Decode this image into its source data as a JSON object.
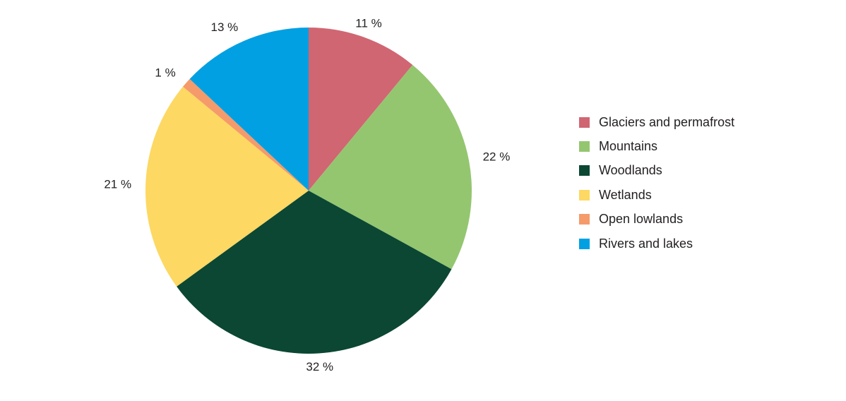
{
  "chart_data": {
    "type": "pie",
    "title": "",
    "start": "12 o'clock, clockwise",
    "series": [
      {
        "slices": [
          {
            "name": "Glaciers and permafrost",
            "value": 11,
            "label": "11 %",
            "color": "#d06672"
          },
          {
            "name": "Mountains",
            "value": 22,
            "label": "22 %",
            "color": "#94c670"
          },
          {
            "name": "Woodlands",
            "value": 32,
            "label": "32 %",
            "color": "#0b4733"
          },
          {
            "name": "Wetlands",
            "value": 21,
            "label": "21 %",
            "color": "#fdd862"
          },
          {
            "name": "Open lowlands",
            "value": 1,
            "label": "1 %",
            "color": "#f59a6b"
          },
          {
            "name": "Rivers and lakes",
            "value": 13,
            "label": "13 %",
            "color": "#00a0e2"
          }
        ]
      }
    ],
    "legend": {
      "placement": "right"
    }
  }
}
